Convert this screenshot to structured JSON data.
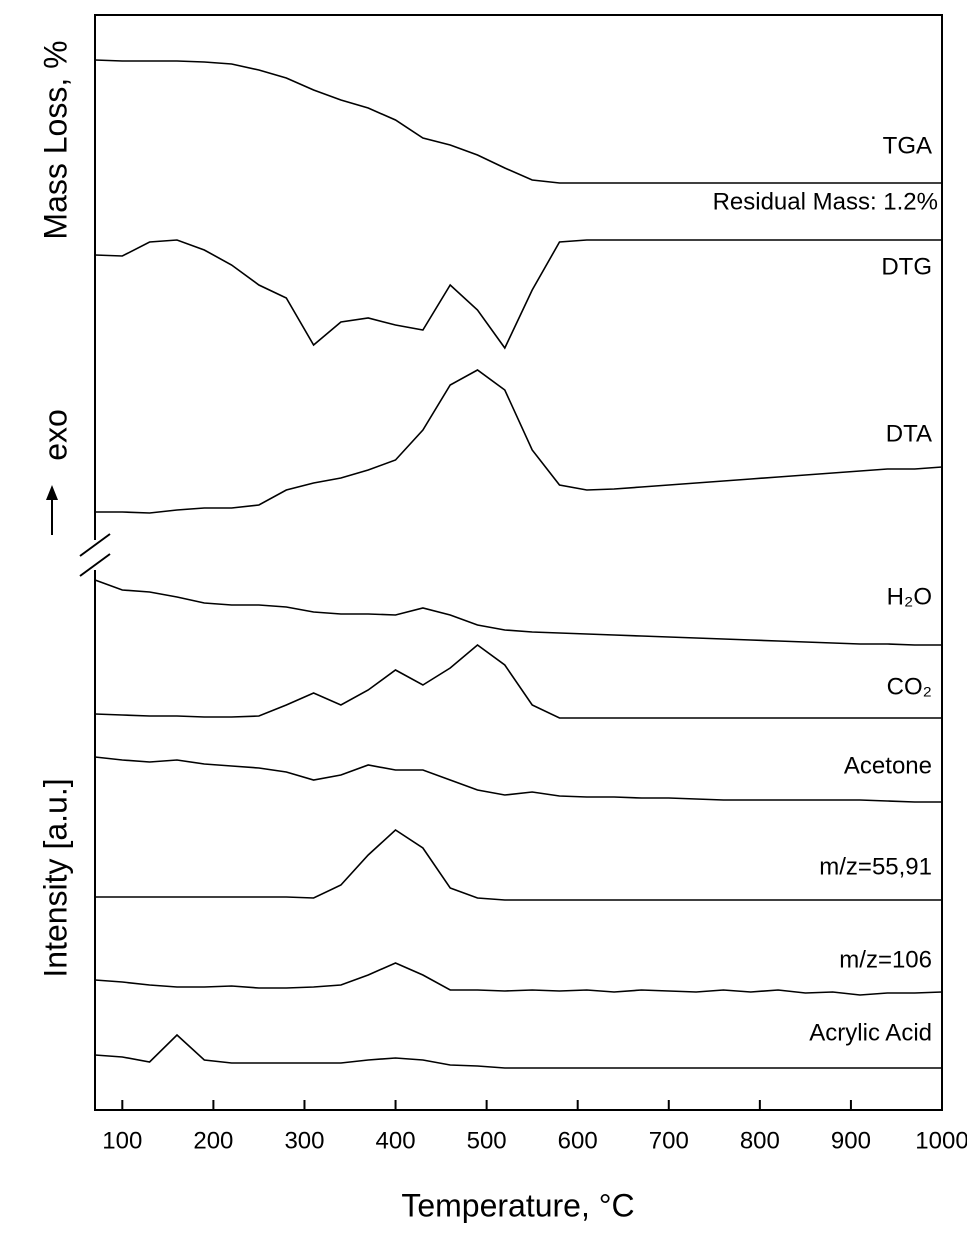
{
  "chart_data": {
    "type": "line",
    "x_label": "Temperature, °C",
    "y_labels": [
      "Mass Loss, %",
      "exo",
      "Intensity [a.u.]"
    ],
    "annotation": "Residual Mass: 1.2%",
    "xlim": [
      70,
      1000
    ],
    "xticks": [
      100,
      200,
      300,
      400,
      500,
      600,
      700,
      800,
      900,
      1000
    ],
    "ylim": [
      0,
      109.5
    ],
    "x": [
      70,
      100,
      130,
      160,
      190,
      220,
      250,
      280,
      310,
      340,
      370,
      400,
      430,
      460,
      490,
      520,
      550,
      580,
      610,
      640,
      670,
      700,
      730,
      760,
      790,
      820,
      850,
      880,
      910,
      940,
      970,
      1000
    ],
    "series": [
      {
        "name": "TGA",
        "color": "#000000",
        "values": [
          105,
          104.9,
          104.9,
          104.9,
          104.8,
          104.6,
          104,
          103.2,
          102,
          101,
          100.2,
          99,
          97.2,
          96.5,
          95.5,
          94.2,
          93,
          92.7,
          92.7,
          92.7,
          92.7,
          92.7,
          92.7,
          92.7,
          92.7,
          92.7,
          92.7,
          92.7,
          92.7,
          92.7,
          92.7,
          92.7
        ]
      },
      {
        "name": "DTG",
        "color": "#000000",
        "values": [
          85.5,
          85.4,
          86.8,
          87,
          86,
          84.5,
          82.5,
          81.2,
          76.5,
          78.8,
          79.2,
          78.5,
          78,
          82.5,
          80,
          76.2,
          82,
          86.8,
          87,
          87,
          87,
          87,
          87,
          87,
          87,
          87,
          87,
          87,
          87,
          87,
          87,
          87
        ]
      },
      {
        "name": "DTA",
        "color": "#000000",
        "values": [
          59.8,
          59.8,
          59.7,
          60,
          60.2,
          60.2,
          60.5,
          62,
          62.7,
          63.2,
          64,
          65,
          68,
          72.5,
          74,
          72,
          66,
          62.5,
          62,
          62.1,
          62.3,
          62.5,
          62.7,
          62.9,
          63.1,
          63.3,
          63.5,
          63.7,
          63.9,
          64.1,
          64.1,
          64.3
        ]
      },
      {
        "name": "H₂O",
        "color": "#000000",
        "values": [
          53,
          52,
          51.8,
          51.3,
          50.7,
          50.5,
          50.5,
          50.3,
          49.8,
          49.6,
          49.6,
          49.5,
          50.2,
          49.5,
          48.5,
          48,
          47.8,
          47.7,
          47.6,
          47.5,
          47.4,
          47.3,
          47.2,
          47.1,
          47,
          46.9,
          46.8,
          46.7,
          46.6,
          46.6,
          46.5,
          46.5
        ]
      },
      {
        "name": "CO₂",
        "color": "#000000",
        "values": [
          39.6,
          39.5,
          39.4,
          39.4,
          39.3,
          39.3,
          39.4,
          40.5,
          41.7,
          40.5,
          42,
          44,
          42.5,
          44.2,
          46.5,
          44.5,
          40.5,
          39.2,
          39.2,
          39.2,
          39.2,
          39.2,
          39.2,
          39.2,
          39.2,
          39.2,
          39.2,
          39.2,
          39.2,
          39.2,
          39.2,
          39.2
        ]
      },
      {
        "name": "Acetone",
        "color": "#000000",
        "values": [
          35.3,
          35,
          34.8,
          35,
          34.6,
          34.4,
          34.2,
          33.8,
          33,
          33.5,
          34.5,
          34,
          34,
          33,
          32,
          31.5,
          31.8,
          31.4,
          31.3,
          31.3,
          31.2,
          31.2,
          31.1,
          31,
          31,
          31,
          31,
          31,
          31,
          30.9,
          30.8,
          30.8
        ]
      },
      {
        "name": "m/z=55,91",
        "color": "#000000",
        "values": [
          21.3,
          21.3,
          21.3,
          21.3,
          21.3,
          21.3,
          21.3,
          21.3,
          21.2,
          22.5,
          25.5,
          28,
          26.2,
          22.2,
          21.2,
          21,
          21,
          21,
          21,
          21,
          21,
          21,
          21,
          21,
          21,
          21,
          21,
          21,
          21,
          21,
          21,
          21
        ]
      },
      {
        "name": "m/z=106",
        "color": "#000000",
        "values": [
          13,
          12.8,
          12.5,
          12.3,
          12.3,
          12.4,
          12.2,
          12.2,
          12.3,
          12.5,
          13.5,
          14.7,
          13.5,
          12,
          12,
          11.9,
          12,
          11.9,
          12,
          11.8,
          12,
          11.9,
          11.8,
          12,
          11.8,
          12,
          11.7,
          11.8,
          11.5,
          11.7,
          11.7,
          11.8
        ]
      },
      {
        "name": "Acrylic Acid",
        "color": "#000000",
        "values": [
          5.5,
          5.3,
          4.8,
          7.5,
          5,
          4.7,
          4.7,
          4.7,
          4.7,
          4.7,
          5,
          5.2,
          5,
          4.5,
          4.4,
          4.2,
          4.2,
          4.2,
          4.2,
          4.2,
          4.2,
          4.2,
          4.2,
          4.2,
          4.2,
          4.2,
          4.2,
          4.2,
          4.2,
          4.2,
          4.2,
          4.2
        ]
      }
    ]
  }
}
